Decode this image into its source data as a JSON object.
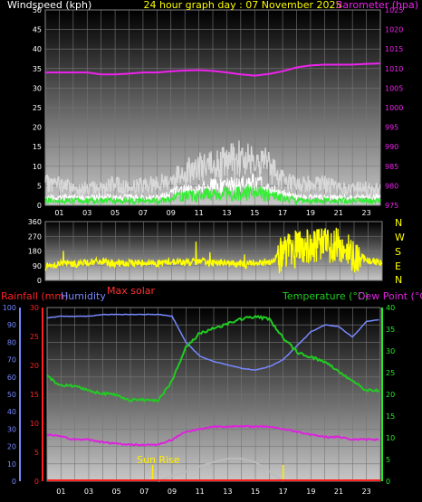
{
  "colors": {
    "background": "#000000",
    "wind": "#ffffff",
    "gust": "#d8d8d8",
    "wind_avg": "#33ee33",
    "barometer": "#ee22ee",
    "direction": "#ffff00",
    "rainfall": "#ff2020",
    "humidity": "#7788ff",
    "temperature": "#22cc22",
    "dew_point": "#dd22dd",
    "solar": "#bbbbbb",
    "max_solar": "#ff3333",
    "sun_marker": "#ffee00"
  },
  "chart_data": [
    {
      "type": "line",
      "title": "24 hour graph day : 07 November 2025",
      "ylabel_left": "Windspeed (kph)",
      "ylabel_right": "Barometer (hpa)",
      "x_ticks": [
        "01",
        "03",
        "05",
        "07",
        "09",
        "11",
        "13",
        "15",
        "17",
        "19",
        "21",
        "23"
      ],
      "x_range": [
        0,
        24
      ],
      "ylim_left": [
        0,
        50
      ],
      "yticks_left": [
        "0",
        "5",
        "10",
        "15",
        "20",
        "25",
        "30",
        "35",
        "40",
        "45",
        "50"
      ],
      "ylim_right": [
        975,
        1025
      ],
      "yticks_right": [
        "975",
        "980",
        "985",
        "990",
        "995",
        "1000",
        "1005",
        "1010",
        "1015",
        "1020",
        "1025"
      ],
      "grid": true,
      "series": [
        {
          "axis": "left",
          "x": [
            0,
            1,
            2,
            3,
            4,
            5,
            6,
            7,
            8,
            9,
            10,
            11,
            12,
            13,
            14,
            15,
            16,
            17,
            18,
            19,
            20,
            21,
            22,
            23,
            24
          ],
          "values": [
            5,
            5,
            4,
            4,
            4,
            5,
            4,
            5,
            5,
            6,
            8,
            9,
            9,
            10,
            11,
            12,
            9,
            6,
            5,
            5,
            5,
            4,
            4,
            4,
            4
          ]
        },
        {
          "axis": "left",
          "x": [
            0,
            1,
            2,
            3,
            4,
            5,
            6,
            7,
            8,
            9,
            10,
            11,
            12,
            13,
            14,
            15,
            16,
            17,
            18,
            19,
            20,
            21,
            22,
            23,
            24
          ],
          "values": [
            2,
            2,
            2,
            2,
            2,
            2,
            2,
            2,
            2,
            3,
            4,
            4,
            5,
            5,
            5,
            6,
            4,
            3,
            2,
            2,
            2,
            2,
            2,
            2,
            2
          ]
        },
        {
          "axis": "right",
          "x": [
            0,
            1,
            2,
            3,
            4,
            5,
            6,
            7,
            8,
            9,
            10,
            11,
            12,
            13,
            14,
            15,
            16,
            17,
            18,
            19,
            20,
            21,
            22,
            23,
            24
          ],
          "values": [
            1009,
            1009,
            1009,
            1009,
            1008.5,
            1008.5,
            1008.7,
            1009,
            1009,
            1009.3,
            1009.5,
            1009.6,
            1009.4,
            1009,
            1008.5,
            1008.2,
            1008.6,
            1009.3,
            1010.3,
            1010.8,
            1011,
            1011,
            1011,
            1011.2,
            1011.3
          ]
        }
      ]
    },
    {
      "type": "line",
      "ylabel_left": "",
      "direction_labels": [
        "N",
        "W",
        "S",
        "E",
        "N"
      ],
      "ylim_left": [
        0,
        360
      ],
      "yticks_left": [
        "0",
        "90",
        "180",
        "270",
        "360"
      ],
      "x_range": [
        0,
        24
      ],
      "grid": true,
      "series": [
        {
          "x": [
            0,
            1,
            2,
            3,
            4,
            5,
            6,
            7,
            8,
            9,
            10,
            11,
            12,
            13,
            14,
            15,
            16,
            17,
            18,
            19,
            20,
            21,
            22,
            23,
            24
          ],
          "values": [
            80,
            105,
            100,
            110,
            115,
            100,
            105,
            110,
            105,
            115,
            110,
            115,
            110,
            105,
            100,
            110,
            115,
            170,
            210,
            200,
            220,
            210,
            160,
            120,
            110
          ]
        }
      ]
    },
    {
      "type": "line",
      "label_rainfall": "Rainfall (mm)",
      "label_humidity": "Humidity",
      "label_max_solar": "Max solar",
      "label_temperature": "Temperature (°C)",
      "label_dew_point": "Dew Point (°C)",
      "annotation_sunrise": "Sun Rise",
      "sunrise_hour": 7.6,
      "sunset_hour": 17.0,
      "x_ticks": [
        "01",
        "03",
        "05",
        "07",
        "09",
        "11",
        "13",
        "15",
        "17",
        "19",
        "21",
        "23"
      ],
      "x_range": [
        0,
        24
      ],
      "humidity_ylim": [
        0,
        100
      ],
      "humidity_ticks": [
        "0",
        "10",
        "20",
        "30",
        "40",
        "50",
        "60",
        "70",
        "80",
        "90",
        "100"
      ],
      "rain_ylim": [
        0,
        30
      ],
      "rain_ticks": [
        "0",
        "5",
        "10",
        "15",
        "20",
        "25",
        "30"
      ],
      "temp_ylim": [
        0,
        40
      ],
      "temp_ticks": [
        "0",
        "5",
        "10",
        "15",
        "20",
        "25",
        "30",
        "35",
        "40"
      ],
      "grid": true,
      "series": [
        {
          "name": "Humidity",
          "x": [
            0,
            1,
            2,
            3,
            4,
            5,
            6,
            7,
            8,
            9,
            10,
            11,
            12,
            13,
            14,
            15,
            16,
            17,
            18,
            19,
            20,
            21,
            22,
            23,
            24
          ],
          "values": [
            94,
            95,
            95,
            95,
            96,
            96,
            96,
            96,
            96,
            95,
            80,
            72,
            69,
            67,
            65,
            64,
            66,
            70,
            78,
            86,
            90,
            89,
            83,
            92,
            93
          ]
        },
        {
          "name": "Temperature (°C)",
          "x": [
            0,
            1,
            2,
            3,
            4,
            5,
            6,
            7,
            8,
            9,
            10,
            11,
            12,
            13,
            14,
            15,
            16,
            17,
            18,
            19,
            20,
            21,
            22,
            23,
            24
          ],
          "values": [
            11,
            10,
            10,
            9.5,
            9.2,
            9,
            8.5,
            8.5,
            8.5,
            10.5,
            14,
            15.5,
            16,
            16.5,
            17,
            17.2,
            17,
            15,
            13.5,
            13,
            12.5,
            11.5,
            10.5,
            9.5,
            9.5
          ]
        },
        {
          "name": "Dew Point (°C)",
          "x": [
            0,
            1,
            2,
            3,
            4,
            5,
            6,
            7,
            8,
            9,
            10,
            11,
            12,
            13,
            14,
            15,
            16,
            17,
            18,
            19,
            20,
            21,
            22,
            23,
            24
          ],
          "values": [
            9,
            8.5,
            8,
            8,
            7.5,
            7.2,
            7,
            7,
            7,
            8,
            9.5,
            10,
            10.5,
            10.5,
            10.5,
            10.5,
            10.5,
            10,
            9.5,
            9,
            8.5,
            8.5,
            8,
            8,
            8
          ]
        },
        {
          "name": "Rainfall (mm)",
          "x": [
            0,
            24
          ],
          "values": [
            0,
            0
          ]
        },
        {
          "name": "Max solar",
          "x": [
            8,
            9,
            10,
            11,
            12,
            13,
            14,
            15,
            16,
            17
          ],
          "values": [
            0,
            0.6,
            1.1,
            1.7,
            2.2,
            2.6,
            2.6,
            2.2,
            1.1,
            0
          ]
        }
      ]
    }
  ]
}
